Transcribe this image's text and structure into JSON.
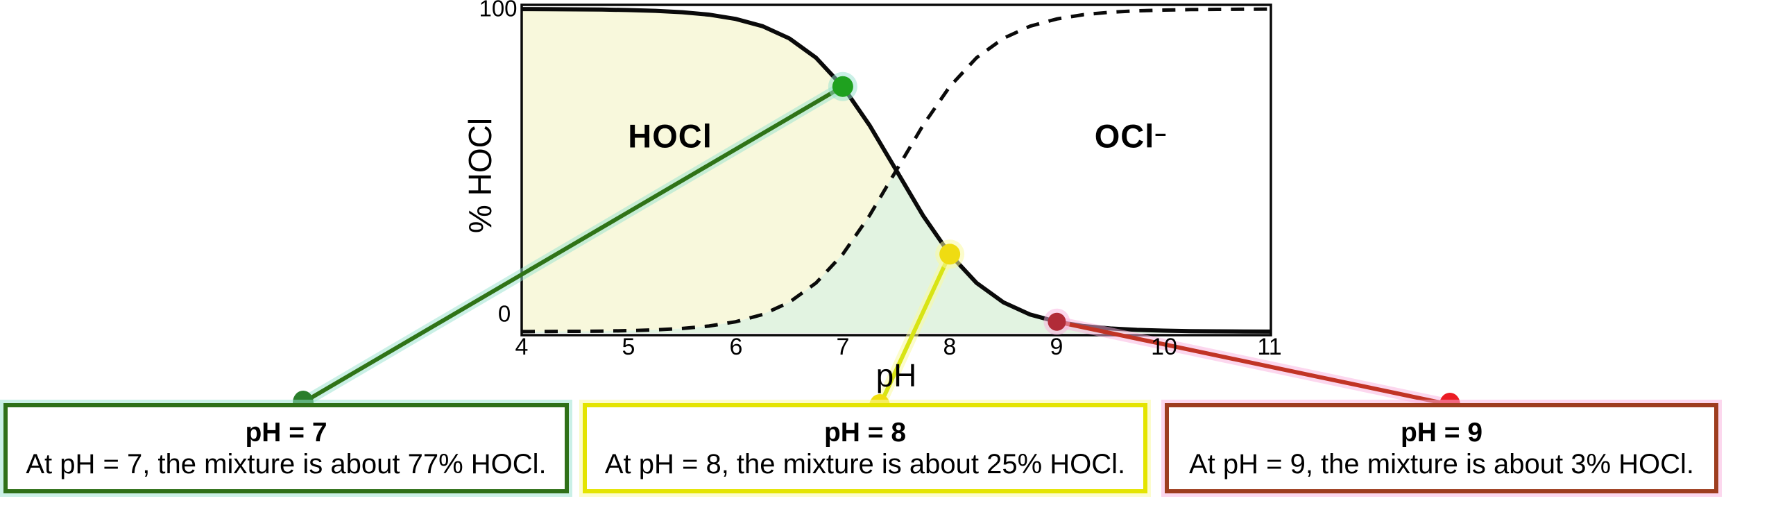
{
  "chart": {
    "y_axis_label": "% HOCl",
    "x_axis_label": "pH",
    "y_tick_labels": [
      "100",
      "0"
    ],
    "x_tick_labels": [
      "4",
      "5",
      "6",
      "7",
      "8",
      "9",
      "10",
      "11"
    ],
    "region_labels": {
      "solid_curve": "HOCl",
      "dashed_curve_base": "OCl",
      "dashed_curve_sup": "−"
    }
  },
  "chart_data": {
    "type": "line",
    "xlabel": "pH",
    "ylabel": "% HOCl",
    "xlim": [
      4,
      11
    ],
    "ylim": [
      0,
      100
    ],
    "grid": false,
    "x": [
      4,
      4.25,
      4.5,
      4.75,
      5,
      5.25,
      5.5,
      5.75,
      6,
      6.25,
      6.5,
      6.75,
      7,
      7.25,
      7.5,
      7.75,
      8,
      8.25,
      8.5,
      8.75,
      9,
      9.25,
      9.5,
      9.75,
      10,
      10.25,
      10.5,
      10.75,
      11
    ],
    "series": [
      {
        "name": "HOCl",
        "style": "solid",
        "values": [
          99.97,
          99.94,
          99.9,
          99.82,
          99.68,
          99.44,
          99.01,
          98.25,
          96.93,
          94.68,
          90.91,
          84.9,
          75.98,
          63.98,
          50,
          35.97,
          24.02,
          15.1,
          9.09,
          5.32,
          3.07,
          1.75,
          0.99,
          0.56,
          0.32,
          0.18,
          0.1,
          0.06,
          0.03
        ]
      },
      {
        "name": "OCl−",
        "style": "dashed",
        "values": [
          0.03,
          0.06,
          0.1,
          0.18,
          0.32,
          0.56,
          0.99,
          1.75,
          3.07,
          5.32,
          9.09,
          15.1,
          24.02,
          35.97,
          50,
          63.98,
          75.98,
          84.9,
          90.91,
          94.68,
          96.93,
          98.25,
          99.01,
          99.44,
          99.68,
          99.82,
          99.9,
          99.94,
          99.97
        ]
      }
    ],
    "markers": [
      {
        "ph": 7,
        "percent_hocl": 77
      },
      {
        "ph": 8,
        "percent_hocl": 25
      },
      {
        "ph": 9,
        "percent_hocl": 3
      }
    ]
  },
  "callouts": [
    {
      "heading": "pH = 7",
      "body": "At pH = 7, the mixture is about 77% HOCl.",
      "border": "#2F7018",
      "line": "#2F7317",
      "halo": "rgba(150,225,205,0.5)",
      "curve_dot": "#1FA11F",
      "anchor_dot": "#2B7E2B"
    },
    {
      "heading": "pH = 8",
      "body": "At pH = 8, the mixture is about 25% HOCl.",
      "border": "#E4E400",
      "line": "#D8E414",
      "halo": "rgba(250,250,160,0.55)",
      "curve_dot": "#EFDC12",
      "anchor_dot": "#F0DE10"
    },
    {
      "heading": "pH = 9",
      "body": "At pH = 9, the mixture is about 3% HOCl.",
      "border": "#9E3D1F",
      "line": "#C13425",
      "halo": "rgba(250,175,222,0.5)",
      "curve_dot": "#B12B38",
      "anchor_dot": "#EB1C24"
    }
  ],
  "colors": {
    "hocl_fill": "#F8F8DC",
    "overlap_fill": "#E2F3E1",
    "curve": "#0A0A0A",
    "frame": "#0A0A0A"
  }
}
